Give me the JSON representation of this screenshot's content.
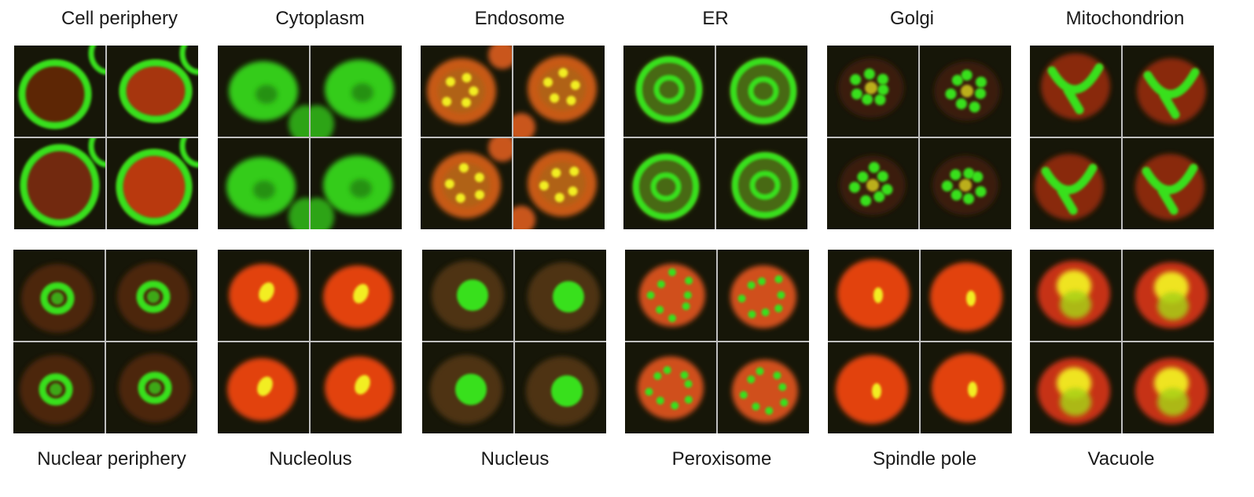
{
  "figure": {
    "top_labels": [
      "Cell periphery",
      "Cytoplasm",
      "Endosome",
      "ER",
      "Golgi",
      "Mitochondrion"
    ],
    "bottom_labels": [
      "Nuclear periphery",
      "Nucleolus",
      "Nucleus",
      "Peroxisome",
      "Spindle pole",
      "Vacuole"
    ]
  },
  "colors": {
    "gfp_green": "#38e01c",
    "rfp_red": "#e2420f",
    "overlap_yellow": "#f2ee22",
    "background_dark": "#161608",
    "panel_border": "#bfbfbf"
  }
}
